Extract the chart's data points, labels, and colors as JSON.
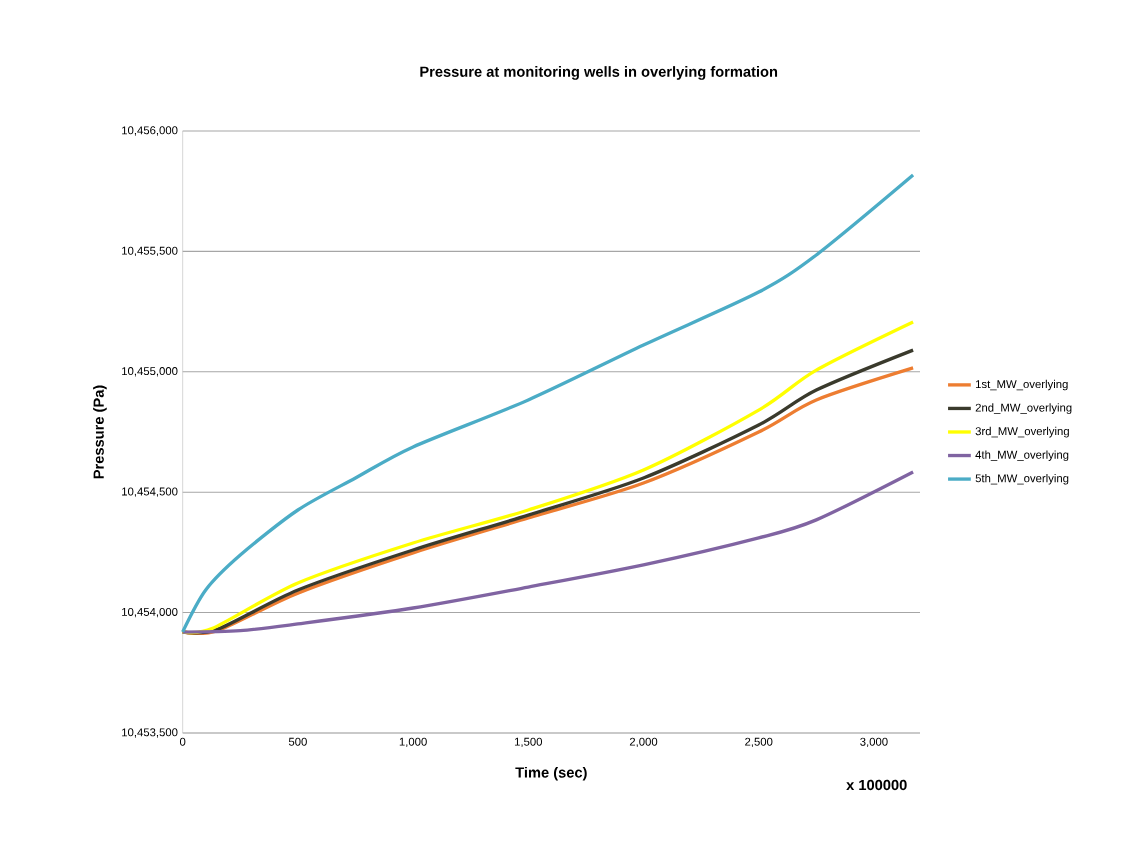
{
  "chart_data": {
    "type": "line",
    "title": "Pressure at monitoring wells in overlying formation",
    "xlabel": "Time (sec)",
    "ylabel": "Pressure (Pa)",
    "annotations": [
      "x 100000"
    ],
    "series": [
      {
        "name": "1st_MW_overlying",
        "color": "#ed7d31",
        "x": [
          0,
          150,
          500,
          1000,
          1500,
          2000,
          2500,
          2750,
          3170
        ],
        "values": [
          10453920,
          10453925,
          10454081,
          10454248,
          10454393,
          10454538,
          10454750,
          10454883,
          10455016
        ]
      },
      {
        "name": "2nd_MW_overlying",
        "color": "#3a3a2c",
        "x": [
          0,
          150,
          500,
          1000,
          1500,
          2000,
          2500,
          2750,
          3170
        ],
        "values": [
          10453920,
          10453930,
          10454094,
          10454260,
          10454405,
          10454559,
          10454779,
          10454924,
          10455090
        ]
      },
      {
        "name": "3rd_MW_overlying",
        "color": "#ffff00",
        "x": [
          0,
          130,
          500,
          1000,
          1500,
          2000,
          2500,
          2750,
          3170
        ],
        "values": [
          10453920,
          10453935,
          10454123,
          10454289,
          10454426,
          10454592,
          10454841,
          10455007,
          10455207
        ]
      },
      {
        "name": "4th_MW_overlying",
        "color": "#8064a2",
        "x": [
          0,
          250,
          500,
          1000,
          1500,
          2000,
          2500,
          2750,
          3170
        ],
        "values": [
          10453919,
          10453925,
          10453953,
          10454019,
          10454106,
          10454198,
          10454310,
          10454385,
          10454584
        ]
      },
      {
        "name": "5th_MW_overlying",
        "color": "#4bacc6",
        "x": [
          0,
          100,
          250,
          500,
          750,
          1000,
          1500,
          2000,
          2500,
          2750,
          3170
        ],
        "values": [
          10453920,
          10454094,
          10454239,
          10454426,
          10454559,
          10454688,
          10454883,
          10455111,
          10455331,
          10455485,
          10455817
        ]
      }
    ],
    "xlim": [
      0,
      3200
    ],
    "xticks": [
      0,
      500,
      {
        "value": 1000,
        "label": "1,000"
      },
      {
        "value": 1500,
        "label": "1,500"
      },
      {
        "value": 2000,
        "label": "2,000"
      },
      {
        "value": 2500,
        "label": "2,500"
      },
      {
        "value": 3000,
        "label": "3,000"
      }
    ],
    "ylim": [
      10453500,
      10456000
    ],
    "yticks": [
      {
        "value": 10453500,
        "label": "10,453,500"
      },
      {
        "value": 10454000,
        "label": "10,454,000"
      },
      {
        "value": 10454500,
        "label": "10,454,500"
      },
      {
        "value": 10455000,
        "label": "10,455,000"
      },
      {
        "value": 10455500,
        "label": "10,455,500"
      },
      {
        "value": 10456000,
        "label": "10,456,000"
      }
    ],
    "grid": "y",
    "legend": "right",
    "marker": "none",
    "line_style": "solid"
  }
}
